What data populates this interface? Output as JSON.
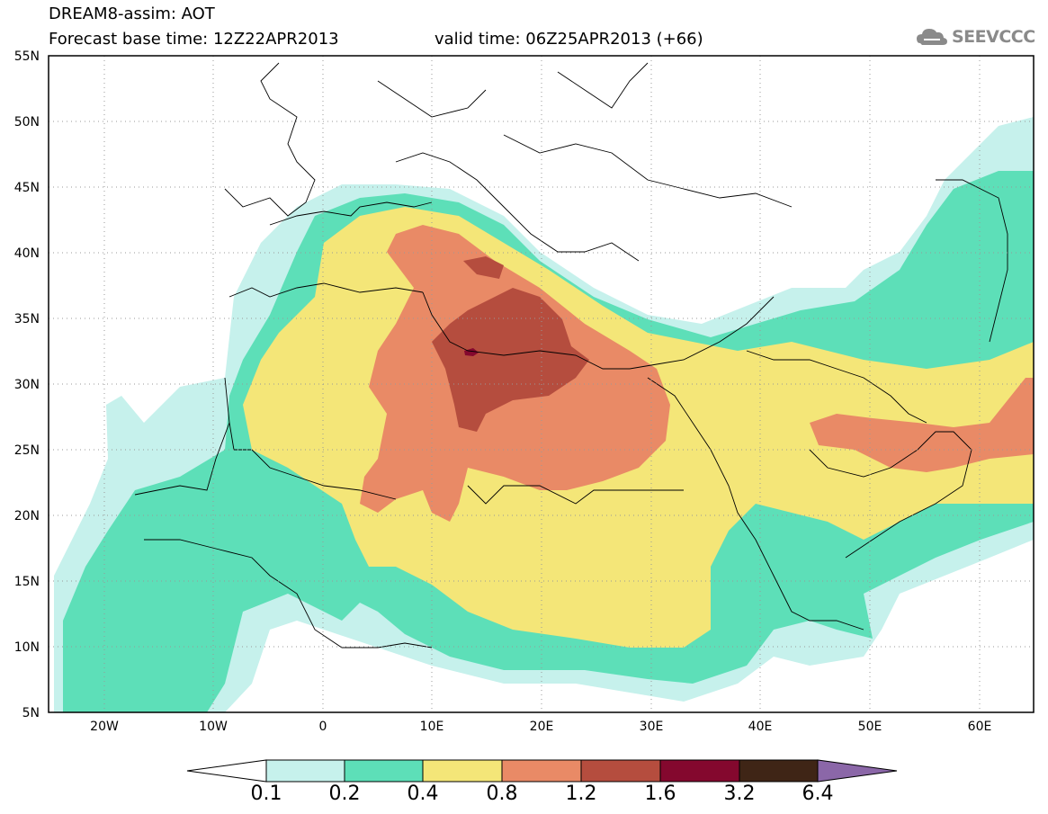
{
  "header": {
    "line1": "DREAM8-assim: AOT",
    "line2": "Forecast base time: 12Z22APR2013",
    "valid": "valid time: 06Z25APR2013 (+66)",
    "logo_text": "SEEVCCC"
  },
  "map": {
    "lat_labels": [
      "55N",
      "50N",
      "45N",
      "40N",
      "35N",
      "30N",
      "25N",
      "20N",
      "15N",
      "10N",
      "5N"
    ],
    "lon_labels": [
      "20W",
      "10W",
      "0",
      "10E",
      "20E",
      "30E",
      "40E",
      "50E",
      "60E"
    ],
    "variable": "AOT"
  },
  "legend": {
    "thresholds": [
      "0.1",
      "0.2",
      "0.4",
      "0.8",
      "1.2",
      "1.6",
      "3.2",
      "6.4"
    ],
    "colors": [
      "#ffffff",
      "#c6f1ec",
      "#5ddfb8",
      "#f4e678",
      "#e98a66",
      "#b54d3e",
      "#84082e",
      "#3f2516",
      "#8b67a8"
    ]
  },
  "colors": {
    "level_0.1": "#c6f1ec",
    "level_0.2": "#5ddfb8",
    "level_0.4": "#f4e678",
    "level_0.8": "#e98a66",
    "level_1.2": "#b54d3e",
    "level_1.6": "#84082e"
  }
}
